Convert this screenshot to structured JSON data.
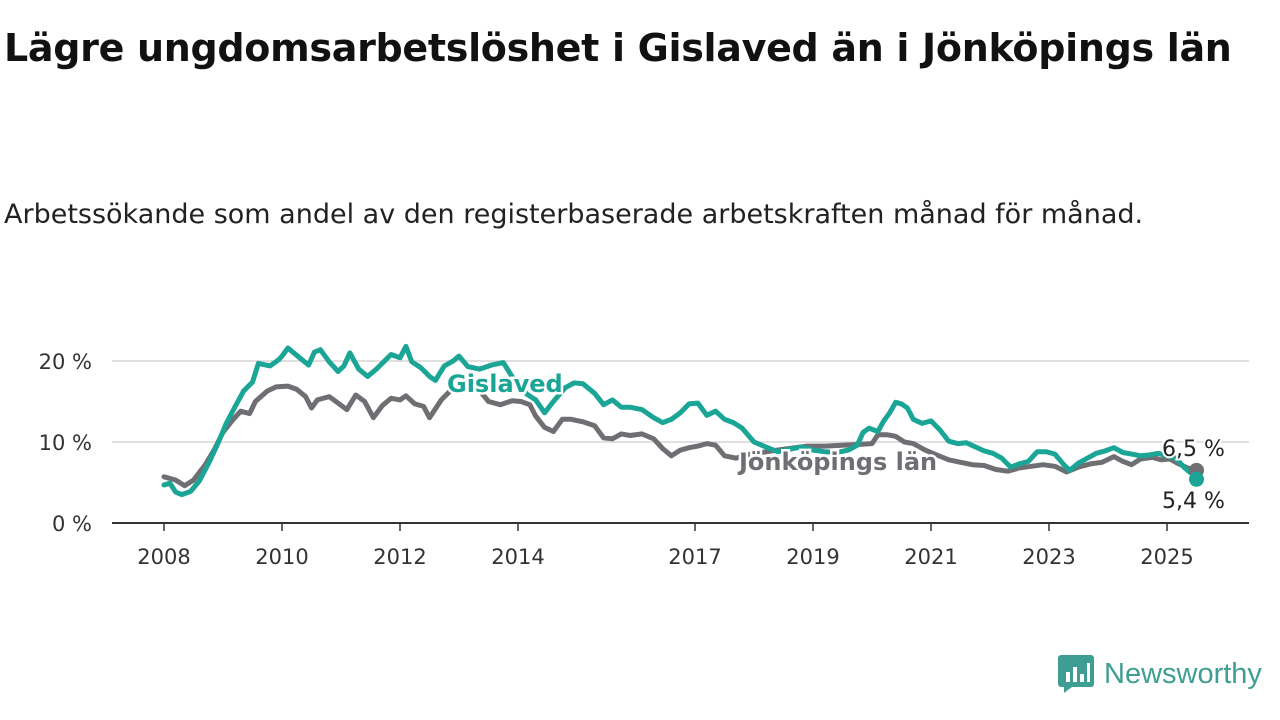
{
  "title": "Lägre ungdomsarbetslöshet i Gislaved än i Jönköpings län",
  "subtitle": "Arbetssökande som andel av den registerbaserade arbetskraften månad för månad.",
  "brand": {
    "name": "Newsworthy",
    "icon": "newsworthy-logo-icon",
    "color": "#3f9e94"
  },
  "chart_data": {
    "type": "line",
    "x_ticks": [
      "2008",
      "2010",
      "2012",
      "2014",
      "2017",
      "2019",
      "2021",
      "2023",
      "2025"
    ],
    "y_ticks": [
      "0 %",
      "10 %",
      "20 %"
    ],
    "ylim": [
      0,
      20
    ],
    "grid": true,
    "series": [
      {
        "name": "Jönköpings län",
        "color": "#6f6e73",
        "end_label": "6,5 %",
        "points": [
          [
            2008.0,
            5.7
          ],
          [
            2008.2,
            5.3
          ],
          [
            2008.35,
            4.6
          ],
          [
            2008.5,
            5.3
          ],
          [
            2008.7,
            7.2
          ],
          [
            2008.85,
            9.0
          ],
          [
            2009.0,
            11.2
          ],
          [
            2009.15,
            12.6
          ],
          [
            2009.3,
            13.8
          ],
          [
            2009.45,
            13.5
          ],
          [
            2009.55,
            15.0
          ],
          [
            2009.75,
            16.3
          ],
          [
            2009.9,
            16.8
          ],
          [
            2010.1,
            16.9
          ],
          [
            2010.25,
            16.5
          ],
          [
            2010.4,
            15.6
          ],
          [
            2010.5,
            14.2
          ],
          [
            2010.6,
            15.2
          ],
          [
            2010.8,
            15.6
          ],
          [
            2010.95,
            14.8
          ],
          [
            2011.1,
            14.0
          ],
          [
            2011.25,
            15.8
          ],
          [
            2011.4,
            15.0
          ],
          [
            2011.55,
            13.0
          ],
          [
            2011.7,
            14.5
          ],
          [
            2011.85,
            15.4
          ],
          [
            2012.0,
            15.2
          ],
          [
            2012.1,
            15.7
          ],
          [
            2012.25,
            14.7
          ],
          [
            2012.4,
            14.4
          ],
          [
            2012.5,
            13.0
          ],
          [
            2012.7,
            15.2
          ],
          [
            2012.85,
            16.3
          ],
          [
            2013.0,
            16.6
          ],
          [
            2013.3,
            16.8
          ],
          [
            2013.5,
            15.0
          ],
          [
            2013.7,
            14.6
          ],
          [
            2013.9,
            15.1
          ],
          [
            2014.05,
            15.0
          ],
          [
            2014.2,
            14.6
          ],
          [
            2014.3,
            13.2
          ],
          [
            2014.45,
            11.8
          ],
          [
            2014.6,
            11.3
          ],
          [
            2014.75,
            12.8
          ],
          [
            2014.9,
            12.8
          ],
          [
            2015.1,
            12.5
          ],
          [
            2015.3,
            12.0
          ],
          [
            2015.45,
            10.5
          ],
          [
            2015.6,
            10.4
          ],
          [
            2015.75,
            11.0
          ],
          [
            2015.9,
            10.8
          ],
          [
            2016.1,
            11.0
          ],
          [
            2016.3,
            10.4
          ],
          [
            2016.45,
            9.2
          ],
          [
            2016.6,
            8.3
          ],
          [
            2016.75,
            9.0
          ],
          [
            2016.9,
            9.3
          ],
          [
            2017.05,
            9.5
          ],
          [
            2017.2,
            9.8
          ],
          [
            2017.35,
            9.6
          ],
          [
            2017.5,
            8.3
          ],
          [
            2017.7,
            8.0
          ],
          [
            2017.85,
            8.4
          ],
          [
            2018.05,
            8.6
          ],
          [
            2018.3,
            8.9
          ],
          [
            2018.6,
            9.2
          ],
          [
            2018.9,
            9.5
          ],
          [
            2019.2,
            9.5
          ],
          [
            2019.5,
            9.6
          ],
          [
            2019.8,
            9.7
          ],
          [
            2020.0,
            9.8
          ],
          [
            2020.1,
            10.9
          ],
          [
            2020.25,
            10.9
          ],
          [
            2020.4,
            10.7
          ],
          [
            2020.55,
            10.0
          ],
          [
            2020.7,
            9.8
          ],
          [
            2020.9,
            9.0
          ],
          [
            2021.1,
            8.4
          ],
          [
            2021.3,
            7.8
          ],
          [
            2021.5,
            7.5
          ],
          [
            2021.7,
            7.2
          ],
          [
            2021.9,
            7.1
          ],
          [
            2022.1,
            6.6
          ],
          [
            2022.3,
            6.4
          ],
          [
            2022.5,
            6.8
          ],
          [
            2022.7,
            7.0
          ],
          [
            2022.9,
            7.2
          ],
          [
            2023.1,
            7.0
          ],
          [
            2023.3,
            6.3
          ],
          [
            2023.5,
            6.9
          ],
          [
            2023.7,
            7.3
          ],
          [
            2023.9,
            7.5
          ],
          [
            2024.1,
            8.2
          ],
          [
            2024.25,
            7.6
          ],
          [
            2024.4,
            7.2
          ],
          [
            2024.55,
            7.9
          ],
          [
            2024.75,
            8.1
          ],
          [
            2024.9,
            7.8
          ],
          [
            2025.05,
            7.9
          ],
          [
            2025.2,
            7.3
          ],
          [
            2025.35,
            6.8
          ],
          [
            2025.5,
            6.5
          ]
        ]
      },
      {
        "name": "Gislaved",
        "color": "#1aa596",
        "end_label": "5,4 %",
        "points": [
          [
            2008.0,
            4.7
          ],
          [
            2008.1,
            4.9
          ],
          [
            2008.2,
            3.8
          ],
          [
            2008.3,
            3.5
          ],
          [
            2008.45,
            3.9
          ],
          [
            2008.6,
            5.2
          ],
          [
            2008.75,
            7.3
          ],
          [
            2008.9,
            9.6
          ],
          [
            2009.05,
            12.2
          ],
          [
            2009.2,
            14.3
          ],
          [
            2009.35,
            16.3
          ],
          [
            2009.5,
            17.4
          ],
          [
            2009.6,
            19.7
          ],
          [
            2009.8,
            19.4
          ],
          [
            2009.95,
            20.2
          ],
          [
            2010.0,
            20.6
          ],
          [
            2010.1,
            21.6
          ],
          [
            2010.2,
            21.0
          ],
          [
            2010.35,
            20.1
          ],
          [
            2010.45,
            19.5
          ],
          [
            2010.55,
            21.1
          ],
          [
            2010.65,
            21.4
          ],
          [
            2010.8,
            19.9
          ],
          [
            2010.95,
            18.7
          ],
          [
            2011.05,
            19.4
          ],
          [
            2011.15,
            21.0
          ],
          [
            2011.3,
            19.0
          ],
          [
            2011.45,
            18.1
          ],
          [
            2011.6,
            19.0
          ],
          [
            2011.75,
            20.1
          ],
          [
            2011.85,
            20.8
          ],
          [
            2012.0,
            20.4
          ],
          [
            2012.1,
            21.8
          ],
          [
            2012.2,
            19.9
          ],
          [
            2012.35,
            19.2
          ],
          [
            2012.5,
            18.1
          ],
          [
            2012.6,
            17.6
          ],
          [
            2012.75,
            19.4
          ],
          [
            2012.9,
            20.0
          ],
          [
            2013.0,
            20.6
          ],
          [
            2013.15,
            19.3
          ],
          [
            2013.35,
            19.0
          ],
          [
            2013.55,
            19.5
          ],
          [
            2013.75,
            19.8
          ],
          [
            2013.95,
            17.5
          ],
          [
            2014.15,
            15.9
          ],
          [
            2014.3,
            15.2
          ],
          [
            2014.45,
            13.6
          ],
          [
            2014.6,
            15.0
          ],
          [
            2014.8,
            16.7
          ],
          [
            2014.95,
            17.3
          ],
          [
            2015.1,
            17.2
          ],
          [
            2015.3,
            16.0
          ],
          [
            2015.45,
            14.6
          ],
          [
            2015.6,
            15.2
          ],
          [
            2015.75,
            14.3
          ],
          [
            2015.9,
            14.3
          ],
          [
            2016.1,
            14.0
          ],
          [
            2016.3,
            13.0
          ],
          [
            2016.45,
            12.4
          ],
          [
            2016.6,
            12.8
          ],
          [
            2016.75,
            13.6
          ],
          [
            2016.9,
            14.7
          ],
          [
            2017.05,
            14.8
          ],
          [
            2017.2,
            13.3
          ],
          [
            2017.35,
            13.8
          ],
          [
            2017.5,
            12.8
          ],
          [
            2017.65,
            12.4
          ],
          [
            2017.8,
            11.7
          ],
          [
            2018.0,
            10.0
          ],
          [
            2018.2,
            9.4
          ],
          [
            2018.4,
            8.8
          ],
          [
            2018.6,
            9.1
          ],
          [
            2018.8,
            9.4
          ],
          [
            2019.0,
            9.0
          ],
          [
            2019.2,
            8.8
          ],
          [
            2019.4,
            8.7
          ],
          [
            2019.6,
            9.0
          ],
          [
            2019.75,
            9.6
          ],
          [
            2019.85,
            11.2
          ],
          [
            2019.95,
            11.7
          ],
          [
            2020.1,
            11.3
          ],
          [
            2020.2,
            12.6
          ],
          [
            2020.3,
            13.6
          ],
          [
            2020.4,
            14.9
          ],
          [
            2020.5,
            14.7
          ],
          [
            2020.6,
            14.2
          ],
          [
            2020.7,
            12.8
          ],
          [
            2020.85,
            12.3
          ],
          [
            2021.0,
            12.6
          ],
          [
            2021.15,
            11.5
          ],
          [
            2021.3,
            10.1
          ],
          [
            2021.45,
            9.8
          ],
          [
            2021.6,
            9.9
          ],
          [
            2021.75,
            9.4
          ],
          [
            2021.9,
            8.9
          ],
          [
            2022.05,
            8.6
          ],
          [
            2022.2,
            8.0
          ],
          [
            2022.35,
            6.9
          ],
          [
            2022.5,
            7.3
          ],
          [
            2022.65,
            7.6
          ],
          [
            2022.8,
            8.8
          ],
          [
            2022.95,
            8.8
          ],
          [
            2023.1,
            8.5
          ],
          [
            2023.25,
            7.2
          ],
          [
            2023.35,
            6.5
          ],
          [
            2023.5,
            7.4
          ],
          [
            2023.65,
            8.0
          ],
          [
            2023.8,
            8.6
          ],
          [
            2023.95,
            8.9
          ],
          [
            2024.1,
            9.3
          ],
          [
            2024.25,
            8.7
          ],
          [
            2024.4,
            8.5
          ],
          [
            2024.55,
            8.3
          ],
          [
            2024.7,
            8.4
          ],
          [
            2024.85,
            8.6
          ],
          [
            2025.0,
            8.3
          ],
          [
            2025.15,
            8.0
          ],
          [
            2025.3,
            6.8
          ],
          [
            2025.45,
            5.9
          ],
          [
            2025.5,
            5.4
          ]
        ]
      }
    ]
  }
}
